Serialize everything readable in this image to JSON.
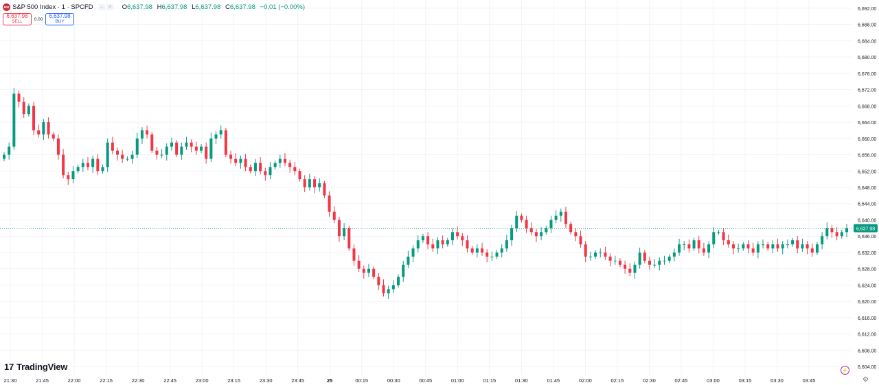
{
  "header": {
    "logo_text": "500",
    "symbol_title": "S&P 500 Index · 1 · SPCFD",
    "ohlc": {
      "o_label": "O",
      "o_value": "6,637.98",
      "h_label": "H",
      "h_value": "6,637.98",
      "l_label": "L",
      "l_value": "6,637.98",
      "c_label": "C",
      "c_value": "6,637.98",
      "change": "−0.01 (−0.00%)"
    }
  },
  "trade": {
    "sell_price": "6,637.98",
    "sell_label": "SELL",
    "spread": "0.00",
    "buy_price": "6,637.98",
    "buy_label": "BUY"
  },
  "branding": {
    "logo": "TradingView",
    "logo_mark": "17"
  },
  "colors": {
    "up": "#089981",
    "down": "#f23645",
    "price_line": "#089981",
    "grid": "#f0f3fa"
  },
  "icons": [
    "hide-icon",
    "settings-icon",
    "lightning-icon",
    "gear-icon"
  ],
  "chart_data": {
    "type": "candlestick",
    "title": "S&P 500 Index · 1 · SPCFD",
    "ylim": [
      6602,
      6694
    ],
    "y_ticks": [
      "6,692.00",
      "6,688.00",
      "6,684.00",
      "6,680.00",
      "6,676.00",
      "6,672.00",
      "6,668.00",
      "6,664.00",
      "6,660.00",
      "6,656.00",
      "6,652.00",
      "6,648.00",
      "6,644.00",
      "6,640.00",
      "6,636.00",
      "6,632.00",
      "6,628.00",
      "6,624.00",
      "6,620.00",
      "6,616.00",
      "6,612.00",
      "6,608.00",
      "6,604.00"
    ],
    "x_ticks": [
      "21:30",
      "21:45",
      "22:00",
      "22:15",
      "22:30",
      "22:45",
      "23:00",
      "23:15",
      "23:30",
      "23:45",
      "25",
      "00:15",
      "00:30",
      "00:45",
      "01:00",
      "01:15",
      "01:30",
      "01:45",
      "02:00",
      "02:15",
      "02:30",
      "02:45",
      "03:00",
      "03:15",
      "03:30",
      "03:45"
    ],
    "last_price": 6637.98,
    "last_price_label": "6,637.98",
    "grid": true,
    "closes": [
      6656,
      6658,
      6671,
      6669,
      6666,
      6668,
      6662,
      6661,
      6664,
      6661,
      6660,
      6656,
      6651,
      6650,
      6652,
      6653,
      6654,
      6653,
      6655,
      6652,
      6653,
      6659,
      6657,
      6656,
      6655,
      6655,
      6656,
      6660,
      6662,
      6661,
      6657,
      6656,
      6656,
      6658,
      6659,
      6656,
      6658,
      6659,
      6658,
      6657,
      6658,
      6655,
      6660,
      6661,
      6662,
      6656,
      6655,
      6654,
      6655,
      6653,
      6652,
      6654,
      6652,
      6651,
      6653,
      6654,
      6655,
      6654,
      6653,
      6652,
      6650,
      6648,
      6650,
      6648,
      6649,
      6646,
      6642,
      6640,
      6636,
      6638,
      6633,
      6630,
      6628,
      6627,
      6628,
      6626,
      6624,
      6622,
      6623,
      6624,
      6626,
      6629,
      6631,
      6633,
      6635,
      6636,
      6634,
      6633,
      6635,
      6634,
      6635,
      6637,
      6636,
      6635,
      6633,
      6632,
      6633,
      6632,
      6631,
      6631,
      6632,
      6633,
      6635,
      6638,
      6641,
      6640,
      6638,
      6637,
      6636,
      6637,
      6638,
      6640,
      6641,
      6642,
      6639,
      6637,
      6636,
      6634,
      6631,
      6631,
      6632,
      6632,
      6631,
      6630,
      6630,
      6629,
      6628,
      6627,
      6629,
      6632,
      6630,
      6629,
      6629,
      6630,
      6630,
      6631,
      6632,
      6634,
      6634,
      6633,
      6635,
      6633,
      6632,
      6634,
      6637,
      6637,
      6635,
      6634,
      6633,
      6633,
      6634,
      6633,
      6632,
      6634,
      6634,
      6633,
      6634,
      6633,
      6634,
      6634,
      6635,
      6633,
      6634,
      6633,
      6632,
      6634,
      6636,
      6638,
      6637,
      6636,
      6637,
      6638
    ]
  }
}
